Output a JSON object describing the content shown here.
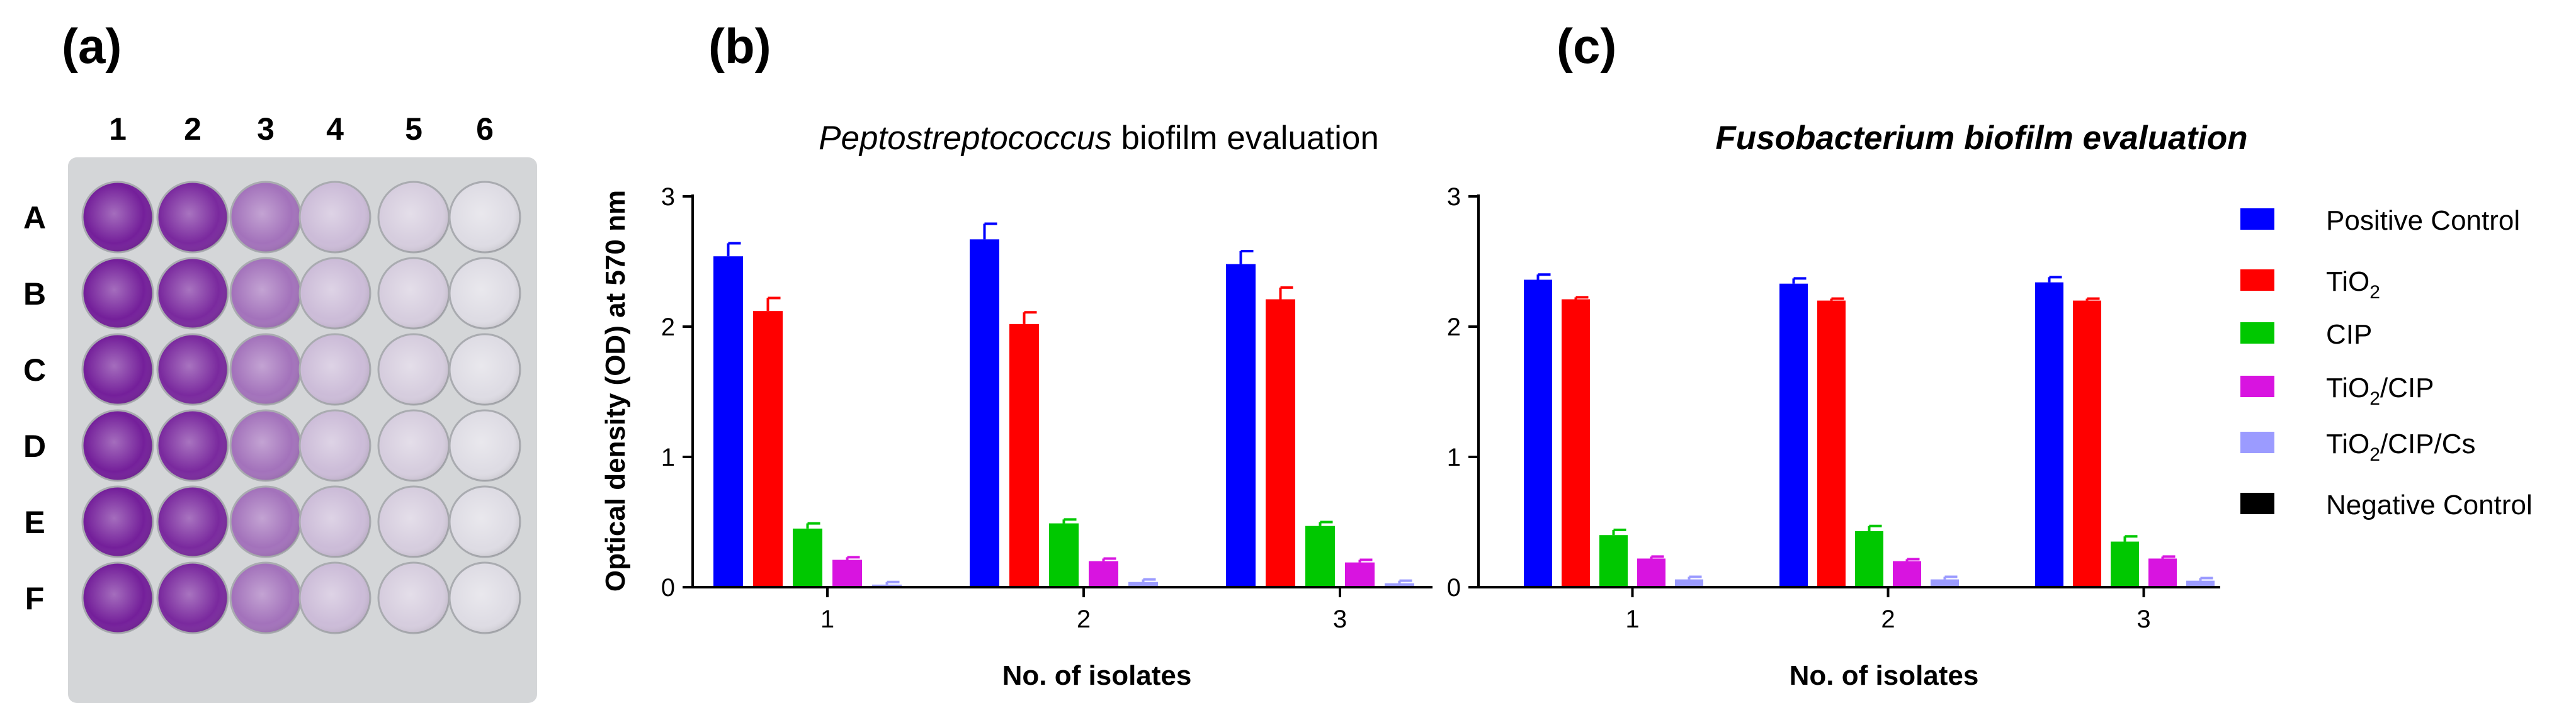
{
  "panels": {
    "a": {
      "label": "(a)",
      "columns": [
        "1",
        "2",
        "3",
        "4",
        "5",
        "6"
      ],
      "rows": [
        "A",
        "B",
        "C",
        "D",
        "E",
        "F"
      ],
      "stain_intensity_by_column": [
        0.95,
        0.9,
        0.55,
        0.2,
        0.12,
        0.05
      ]
    },
    "b": {
      "label": "(b)"
    },
    "c": {
      "label": "(c)"
    }
  },
  "chart_data": [
    {
      "type": "bar",
      "title_italic": "Peptostreptococcus",
      "title_rest": " biofilm evaluation",
      "xlabel": "No. of isolates",
      "ylabel": "Optical density (OD) at 570 nm",
      "categories": [
        "1",
        "2",
        "3"
      ],
      "ylim": [
        0,
        3
      ],
      "yticks": [
        "0",
        "1",
        "2",
        "3"
      ],
      "series": [
        {
          "name": "Positive Control",
          "values": [
            2.54,
            2.67,
            2.48
          ],
          "errors": [
            0.1,
            0.12,
            0.1
          ]
        },
        {
          "name": "TiO2",
          "values": [
            2.12,
            2.02,
            2.21
          ],
          "errors": [
            0.1,
            0.09,
            0.09
          ]
        },
        {
          "name": "CIP",
          "values": [
            0.45,
            0.49,
            0.47
          ],
          "errors": [
            0.04,
            0.03,
            0.03
          ]
        },
        {
          "name": "TiO2/CIP",
          "values": [
            0.21,
            0.2,
            0.19
          ],
          "errors": [
            0.02,
            0.02,
            0.02
          ]
        },
        {
          "name": "TiO2/CIP/Cs",
          "values": [
            0.02,
            0.04,
            0.03
          ],
          "errors": [
            0.02,
            0.02,
            0.02
          ]
        },
        {
          "name": "Negative Control",
          "values": [
            0,
            0,
            0
          ],
          "errors": [
            0,
            0,
            0
          ]
        }
      ]
    },
    {
      "type": "bar",
      "title_italic": "Fusobacterium biofilm evaluation",
      "title_rest": "",
      "xlabel": "No. of isolates",
      "ylabel": "",
      "categories": [
        "1",
        "2",
        "3"
      ],
      "ylim": [
        0,
        3
      ],
      "yticks": [
        "0",
        "1",
        "2",
        "3"
      ],
      "series": [
        {
          "name": "Positive Control",
          "values": [
            2.36,
            2.33,
            2.34
          ],
          "errors": [
            0.04,
            0.04,
            0.04
          ]
        },
        {
          "name": "TiO2",
          "values": [
            2.21,
            2.2,
            2.2
          ],
          "errors": [
            0.015,
            0.015,
            0.015
          ]
        },
        {
          "name": "CIP",
          "values": [
            0.4,
            0.43,
            0.35
          ],
          "errors": [
            0.04,
            0.04,
            0.04
          ]
        },
        {
          "name": "TiO2/CIP",
          "values": [
            0.22,
            0.2,
            0.22
          ],
          "errors": [
            0.015,
            0.015,
            0.015
          ]
        },
        {
          "name": "TiO2/CIP/Cs",
          "values": [
            0.06,
            0.06,
            0.05
          ],
          "errors": [
            0.02,
            0.02,
            0.02
          ]
        },
        {
          "name": "Negative Control",
          "values": [
            0,
            0,
            0
          ],
          "errors": [
            0,
            0,
            0
          ]
        }
      ]
    }
  ],
  "legend": {
    "position": "right",
    "items": [
      {
        "label": "Positive Control",
        "color": "#0000ff"
      },
      {
        "label_main": "TiO",
        "label_sub": "2",
        "label_tail": "",
        "color": "#ff0000"
      },
      {
        "label": "CIP",
        "color": "#00c800"
      },
      {
        "label_main": "TiO",
        "label_sub": "2",
        "label_tail": "/CIP",
        "color": "#d814e0"
      },
      {
        "label_main": "TiO",
        "label_sub": "2",
        "label_tail": "/CIP/Cs",
        "color": "#9b9bff"
      },
      {
        "label": "Negative Control",
        "color": "#000000"
      }
    ]
  },
  "colors": [
    "#0000ff",
    "#ff0000",
    "#00c800",
    "#d814e0",
    "#9b9bff",
    "#000000"
  ]
}
